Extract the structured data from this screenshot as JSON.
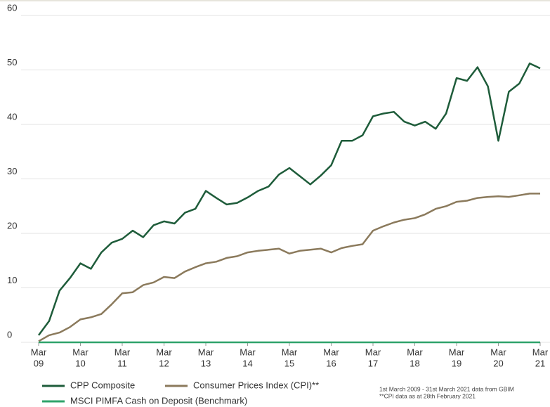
{
  "chart_data": {
    "type": "line",
    "x": [
      "2009-03",
      "2009-06",
      "2009-09",
      "2009-12",
      "2010-03",
      "2010-06",
      "2010-09",
      "2010-12",
      "2011-03",
      "2011-06",
      "2011-09",
      "2011-12",
      "2012-03",
      "2012-06",
      "2012-09",
      "2012-12",
      "2013-03",
      "2013-06",
      "2013-09",
      "2013-12",
      "2014-03",
      "2014-06",
      "2014-09",
      "2014-12",
      "2015-03",
      "2015-06",
      "2015-09",
      "2015-12",
      "2016-03",
      "2016-06",
      "2016-09",
      "2016-12",
      "2017-03",
      "2017-06",
      "2017-09",
      "2017-12",
      "2018-03",
      "2018-06",
      "2018-09",
      "2018-12",
      "2019-03",
      "2019-06",
      "2019-09",
      "2019-12",
      "2020-03",
      "2020-06",
      "2020-09",
      "2020-12",
      "2021-03"
    ],
    "series": [
      {
        "name": "CPP Composite",
        "color": "#1e5c3a",
        "values": [
          1.3,
          3.9,
          9.5,
          11.8,
          14.5,
          13.5,
          16.5,
          18.3,
          19.0,
          20.5,
          19.3,
          21.5,
          22.2,
          21.8,
          23.8,
          24.5,
          27.8,
          26.5,
          25.3,
          25.6,
          26.6,
          27.8,
          28.6,
          30.8,
          32.0,
          30.5,
          29.0,
          30.6,
          32.5,
          37.0,
          37.0,
          38.0,
          41.5,
          42.0,
          42.3,
          40.5,
          39.8,
          40.5,
          39.2,
          42.0,
          48.5,
          48.0,
          50.5,
          47.0,
          37.0,
          46.0,
          47.5,
          51.2,
          50.3
        ]
      },
      {
        "name": "Consumer Prices Index (CPI)**",
        "color": "#8b7a5c",
        "values": [
          0.2,
          1.3,
          1.8,
          2.8,
          4.2,
          4.6,
          5.2,
          7.0,
          9.0,
          9.2,
          10.5,
          11.0,
          12.0,
          11.8,
          13.0,
          13.8,
          14.5,
          14.8,
          15.5,
          15.8,
          16.5,
          16.8,
          17.0,
          17.2,
          16.3,
          16.8,
          17.0,
          17.2,
          16.5,
          17.3,
          17.7,
          18.0,
          20.5,
          21.3,
          22.0,
          22.5,
          22.8,
          23.5,
          24.5,
          25.0,
          25.8,
          26.0,
          26.5,
          26.7,
          26.8,
          26.7,
          27.0,
          27.3,
          27.3
        ]
      },
      {
        "name": "MSCI PIMFA Cash on Deposit (Benchmark)",
        "color": "#2fa36b",
        "values": [
          0,
          0,
          0,
          0,
          0,
          0,
          0,
          0,
          0,
          0,
          0,
          0,
          0,
          0,
          0,
          0,
          0,
          0,
          0,
          0,
          0,
          0,
          0,
          0,
          0,
          0,
          0,
          0,
          0,
          0,
          0,
          0,
          0,
          0,
          0,
          0,
          0,
          0,
          0,
          0,
          0,
          0,
          0,
          0,
          0,
          0,
          0,
          0,
          0
        ]
      }
    ],
    "ylim": [
      0,
      60
    ],
    "yticks": [
      0,
      10,
      20,
      30,
      40,
      50,
      60
    ],
    "grid": true,
    "xticks": [
      {
        "value": "2009-03",
        "label": [
          "Mar",
          "09"
        ]
      },
      {
        "value": "2010-03",
        "label": [
          "Mar",
          "10"
        ]
      },
      {
        "value": "2011-03",
        "label": [
          "Mar",
          "11"
        ]
      },
      {
        "value": "2012-03",
        "label": [
          "Mar",
          "12"
        ]
      },
      {
        "value": "2013-03",
        "label": [
          "Mar",
          "13"
        ]
      },
      {
        "value": "2014-03",
        "label": [
          "Mar",
          "14"
        ]
      },
      {
        "value": "2015-03",
        "label": [
          "Mar",
          "15"
        ]
      },
      {
        "value": "2016-03",
        "label": [
          "Mar",
          "16"
        ]
      },
      {
        "value": "2017-03",
        "label": [
          "Mar",
          "17"
        ]
      },
      {
        "value": "2018-03",
        "label": [
          "Mar",
          "18"
        ]
      },
      {
        "value": "2019-03",
        "label": [
          "Mar",
          "19"
        ]
      },
      {
        "value": "2020-03",
        "label": [
          "Mar",
          "20"
        ]
      },
      {
        "value": "2021-03",
        "label": [
          "Mar",
          "21"
        ]
      }
    ],
    "notes": [
      "1st March 2009 - 31st March 2021 data from GBIM",
      "**CPI data as at 28th February 2021"
    ]
  }
}
